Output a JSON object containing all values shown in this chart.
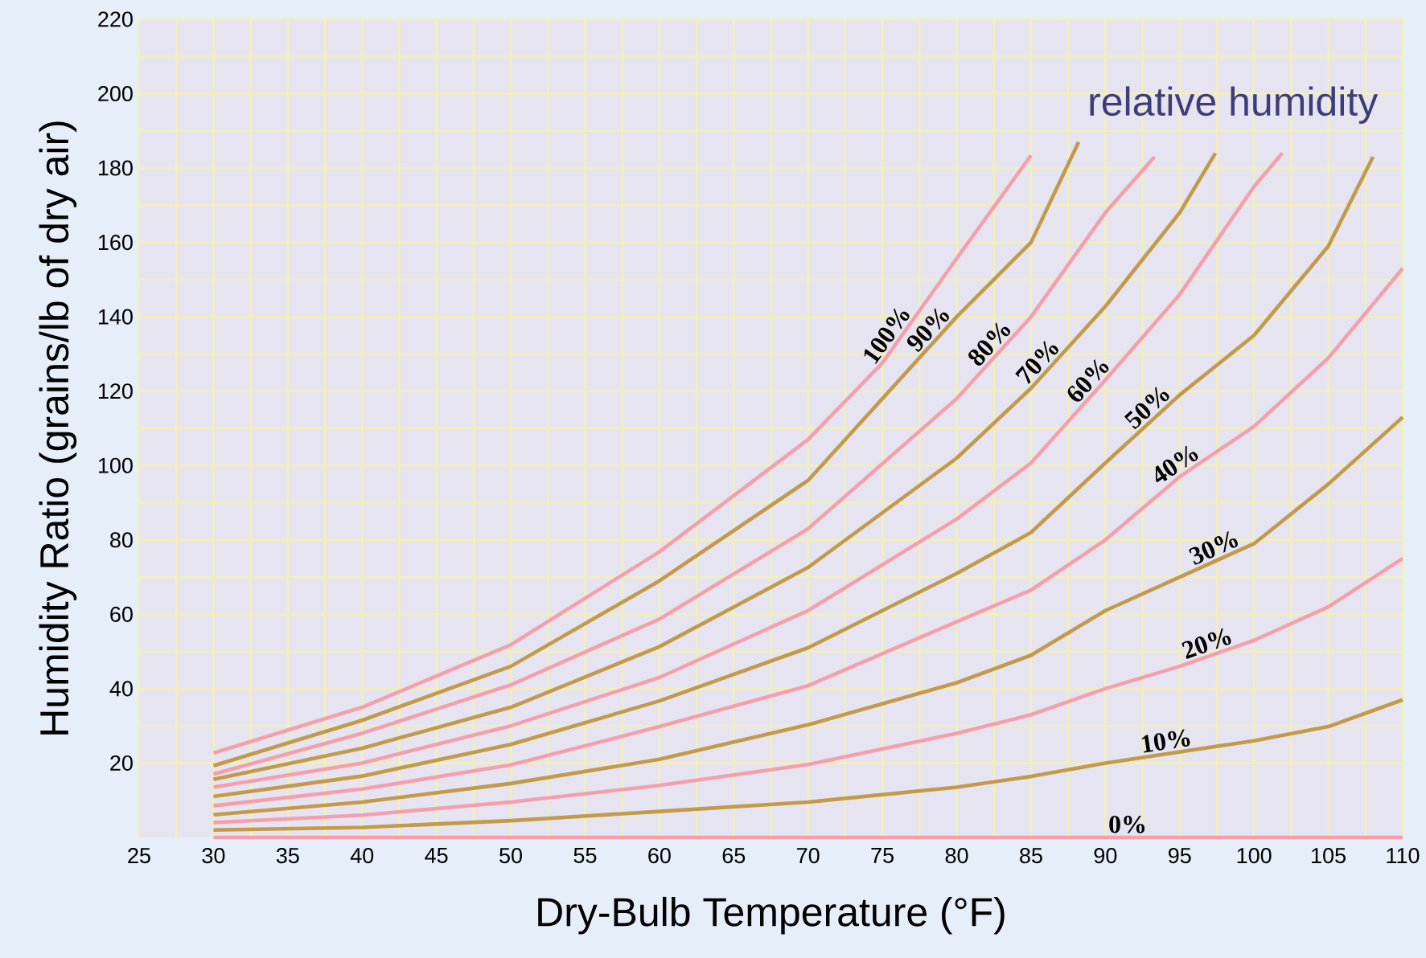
{
  "chart_data": {
    "type": "line",
    "xlabel": "Dry-Bulb Temperature (°F)",
    "ylabel": "Humidity Ratio (grains/lb of dry air)",
    "annotations": [
      "relative humidity"
    ],
    "xlim": [
      25,
      110
    ],
    "xticks": [
      25,
      30,
      35,
      40,
      45,
      50,
      55,
      60,
      65,
      70,
      75,
      80,
      85,
      90,
      95,
      100,
      105,
      110
    ],
    "ylim": [
      0,
      220
    ],
    "yticks": [
      20,
      40,
      60,
      80,
      100,
      120,
      140,
      160,
      180,
      200,
      220
    ],
    "grid": true,
    "legend": false,
    "marker": "none",
    "line_style": "solid",
    "series": [
      {
        "name": "100%",
        "color": "#f4a0ac",
        "x": [
          30,
          40,
          50,
          60,
          70,
          75,
          80,
          85
        ],
        "values": [
          22.7,
          35,
          51.8,
          76.8,
          107,
          127.6,
          155.7,
          183.4
        ]
      },
      {
        "name": "90%",
        "color": "#c29a4a",
        "x": [
          30,
          40,
          50,
          60,
          70,
          80,
          85,
          88.2
        ],
        "values": [
          19.3,
          31.5,
          46,
          69,
          96,
          140,
          160,
          187
        ]
      },
      {
        "name": "80%",
        "color": "#f4a0ac",
        "x": [
          30,
          40,
          50,
          60,
          70,
          80,
          85,
          90,
          93.3
        ],
        "values": [
          17,
          28,
          41,
          58.7,
          83,
          118,
          140,
          168,
          183
        ]
      },
      {
        "name": "70%",
        "color": "#c29a4a",
        "x": [
          30,
          40,
          50,
          60,
          70,
          80,
          85,
          90,
          95,
          97.4
        ],
        "values": [
          15.6,
          24,
          35,
          51.3,
          72.6,
          102,
          120.8,
          142.8,
          168,
          184
        ]
      },
      {
        "name": "60%",
        "color": "#f4a0ac",
        "x": [
          30,
          40,
          50,
          60,
          70,
          80,
          85,
          90,
          95,
          100,
          101.9
        ],
        "values": [
          13.5,
          20,
          30,
          43,
          61,
          85.6,
          100.7,
          123,
          146,
          175,
          184
        ]
      },
      {
        "name": "50%",
        "color": "#c29a4a",
        "x": [
          30,
          40,
          50,
          60,
          70,
          80,
          85,
          90,
          95,
          100,
          105,
          108
        ],
        "values": [
          11,
          16.5,
          25,
          36.7,
          51,
          71,
          82,
          100.7,
          119,
          135,
          159,
          183
        ]
      },
      {
        "name": "40%",
        "color": "#f4a0ac",
        "x": [
          30,
          40,
          50,
          60,
          70,
          80,
          85,
          90,
          95,
          100,
          105,
          110
        ],
        "values": [
          8.5,
          13,
          19.5,
          29.8,
          40.8,
          58,
          66.5,
          80,
          97,
          110.5,
          128.9,
          153
        ]
      },
      {
        "name": "30%",
        "color": "#c29a4a",
        "x": [
          30,
          40,
          50,
          60,
          70,
          80,
          85,
          90,
          95,
          100,
          105,
          110
        ],
        "values": [
          6.1,
          9.5,
          14.5,
          21,
          30.3,
          41.6,
          49,
          61,
          70,
          79,
          95,
          113
        ]
      },
      {
        "name": "20%",
        "color": "#f4a0ac",
        "x": [
          30,
          40,
          50,
          60,
          70,
          80,
          85,
          90,
          95,
          100,
          105,
          110
        ],
        "values": [
          4,
          6,
          9.5,
          14,
          19.6,
          28,
          33,
          40,
          46,
          53,
          62,
          75
        ]
      },
      {
        "name": "10%",
        "color": "#c29a4a",
        "x": [
          30,
          40,
          50,
          60,
          70,
          80,
          85,
          90,
          100,
          105,
          110
        ],
        "values": [
          2,
          2.7,
          4.5,
          7,
          9.5,
          13.5,
          16.4,
          20,
          26,
          29.8,
          37
        ]
      },
      {
        "name": "0%",
        "color": "#f4a0ac",
        "x": [
          30,
          110
        ],
        "values": [
          0,
          0
        ]
      }
    ]
  }
}
